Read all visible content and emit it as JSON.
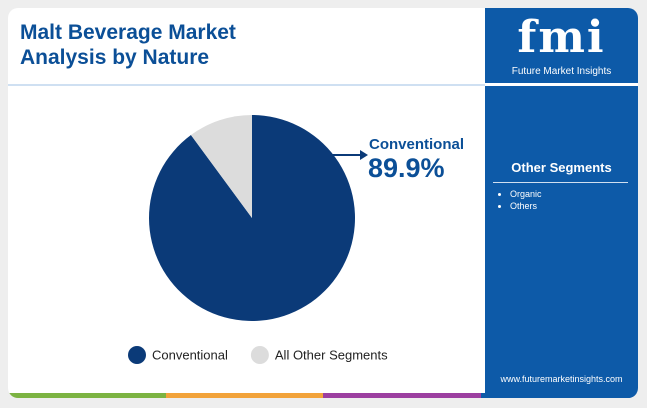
{
  "chart_data": {
    "type": "pie",
    "title": "Malt Beverage Market Analysis by Nature",
    "categories": [
      "Conventional",
      "All Other Segments"
    ],
    "values": [
      89.9,
      10.1
    ],
    "value_labels": [
      "89.9%",
      null
    ],
    "colors": [
      "#0b3a78",
      "#dcdcdc"
    ],
    "legend": "bottom"
  },
  "brand": {
    "logo": "fmi",
    "name": "Future Market Insights",
    "url": "www.futuremarketinsights.com"
  },
  "sidebar": {
    "title": "Other Segments",
    "items": [
      "Organic",
      "Others"
    ]
  }
}
